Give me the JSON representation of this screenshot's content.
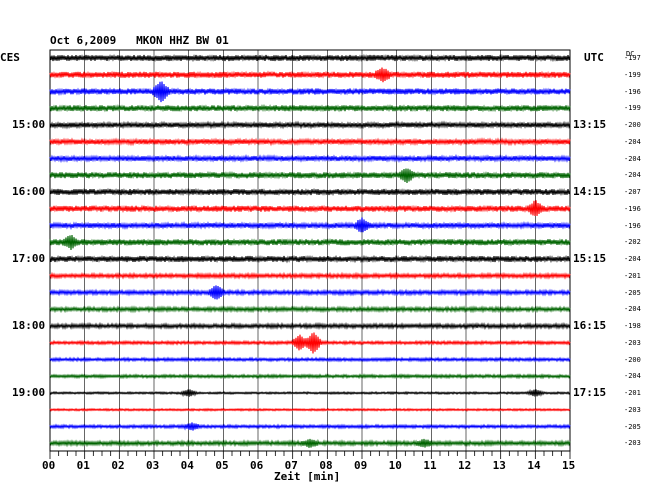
{
  "chart_data": {
    "type": "line",
    "title": "Oct 6,2009   MKON HHZ BW 01",
    "left_header": "CES",
    "right_header": "UTC",
    "dc_header": "DC",
    "xlabel": "Zeit [min]",
    "xlim": [
      0,
      15
    ],
    "x_ticks": [
      "00",
      "01",
      "02",
      "03",
      "04",
      "05",
      "06",
      "07",
      "08",
      "09",
      "10",
      "11",
      "12",
      "13",
      "14",
      "15"
    ],
    "grid": true,
    "trace_colors": [
      "#000000",
      "#ff0000",
      "#0000ff",
      "#006400"
    ],
    "left_hour_labels": [
      {
        "row": 4,
        "label": "15:00"
      },
      {
        "row": 8,
        "label": "16:00"
      },
      {
        "row": 12,
        "label": "17:00"
      },
      {
        "row": 16,
        "label": "18:00"
      },
      {
        "row": 20,
        "label": "19:00"
      }
    ],
    "right_hour_labels": [
      {
        "row": 4,
        "label": "13:15"
      },
      {
        "row": 8,
        "label": "14:15"
      },
      {
        "row": 12,
        "label": "15:15"
      },
      {
        "row": 16,
        "label": "16:15"
      },
      {
        "row": 20,
        "label": "17:15"
      }
    ],
    "dc_offsets": [
      "-197",
      "-199",
      "-196",
      "-199",
      "-200",
      "-204",
      "-204",
      "-204",
      "-207",
      "-196",
      "-196",
      "-202",
      "-204",
      "-201",
      "-205",
      "-204",
      "-198",
      "-203",
      "-200",
      "-204",
      "-201",
      "-203",
      "-205",
      "-203"
    ],
    "rows": [
      {
        "amp": 3,
        "events": []
      },
      {
        "amp": 3,
        "events": [
          {
            "t": 9.6,
            "a": 5
          }
        ]
      },
      {
        "amp": 3,
        "events": [
          {
            "t": 3.2,
            "a": 9
          }
        ]
      },
      {
        "amp": 3,
        "events": []
      },
      {
        "amp": 2.5,
        "events": []
      },
      {
        "amp": 2.5,
        "events": []
      },
      {
        "amp": 2.5,
        "events": []
      },
      {
        "amp": 3,
        "events": [
          {
            "t": 10.3,
            "a": 5
          }
        ]
      },
      {
        "amp": 3,
        "events": []
      },
      {
        "amp": 3,
        "events": [
          {
            "t": 14.0,
            "a": 6
          }
        ]
      },
      {
        "amp": 2.5,
        "events": [
          {
            "t": 9.0,
            "a": 6
          }
        ]
      },
      {
        "amp": 3,
        "events": [
          {
            "t": 0.6,
            "a": 5
          }
        ]
      },
      {
        "amp": 3,
        "events": []
      },
      {
        "amp": 2,
        "events": []
      },
      {
        "amp": 2,
        "events": [
          {
            "t": 4.8,
            "a": 6
          }
        ]
      },
      {
        "amp": 2,
        "events": []
      },
      {
        "amp": 2,
        "events": []
      },
      {
        "amp": 1.5,
        "events": [
          {
            "t": 7.2,
            "a": 7
          },
          {
            "t": 7.6,
            "a": 10
          }
        ]
      },
      {
        "amp": 1.5,
        "events": []
      },
      {
        "amp": 1.5,
        "events": []
      },
      {
        "amp": 1,
        "events": [
          {
            "t": 4.0,
            "a": 3
          },
          {
            "t": 14.0,
            "a": 3
          }
        ]
      },
      {
        "amp": 1,
        "events": []
      },
      {
        "amp": 1.5,
        "events": [
          {
            "t": 4.1,
            "a": 3
          }
        ]
      },
      {
        "amp": 2,
        "events": [
          {
            "t": 7.5,
            "a": 3
          },
          {
            "t": 10.8,
            "a": 3
          }
        ]
      }
    ]
  }
}
